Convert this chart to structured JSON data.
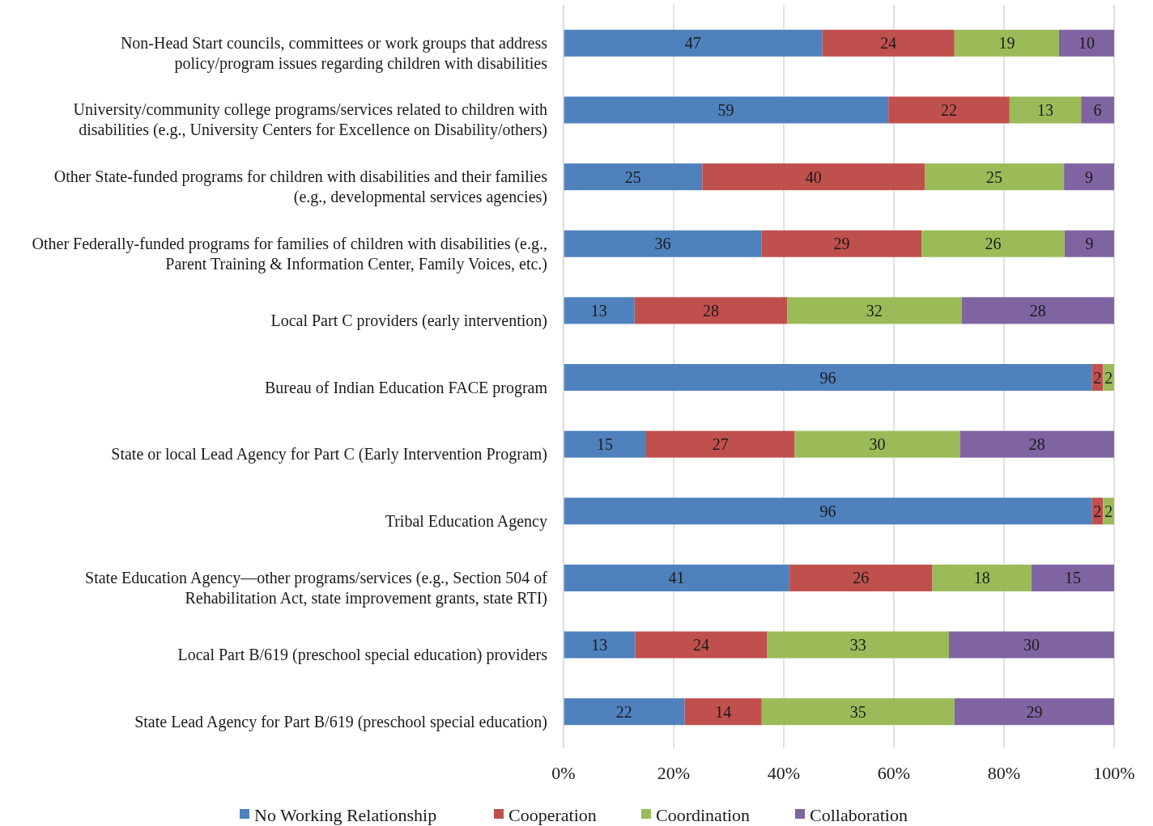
{
  "chart_data": {
    "type": "bar",
    "orientation": "horizontal",
    "stacked": true,
    "categories": [
      "Non-Head Start councils, committees or work groups that address policy/program issues regarding children with disabilities",
      "University/community college programs/services related to children with disabilities (e.g., University Centers for Excellence on Disability/others)",
      "Other State-funded programs for children with disabilities and their families (e.g., developmental services agencies)",
      "Other Federally-funded programs for families of children with disabilities (e.g., Parent Training & Information Center, Family Voices, etc.)",
      "Local Part C providers (early intervention)",
      "Bureau of Indian Education FACE program",
      "State or local Lead Agency for Part C (Early Intervention Program)",
      "Tribal Education Agency",
      "State Education Agency—other programs/services (e.g., Section 504 of Rehabilitation Act, state improvement grants, state RTI)",
      "Local Part B/619 (preschool special education) providers",
      "State Lead Agency for Part B/619 (preschool special education)"
    ],
    "series": [
      {
        "name": "No Working Relationship",
        "color": "#4f81bd",
        "values": [
          47,
          59,
          25.2,
          36,
          12.9,
          96,
          15,
          96,
          41,
          13,
          22
        ],
        "value_labels": [
          "47",
          "59",
          "25",
          "36",
          "13",
          "96",
          "15",
          "96",
          "41",
          "13",
          "22"
        ]
      },
      {
        "name": "Cooperation",
        "color": "#c0504d",
        "values": [
          24,
          22,
          40.4,
          29,
          27.7,
          2,
          27,
          2,
          26,
          24,
          14
        ],
        "value_labels": [
          "24",
          "22",
          "40",
          "29",
          "28",
          "2",
          "27",
          "2",
          "26",
          "24",
          "14"
        ]
      },
      {
        "name": "Coordination",
        "color": "#9bbb59",
        "values": [
          19,
          13,
          25.3,
          26,
          31.7,
          2,
          30,
          2,
          18,
          33,
          35
        ],
        "value_labels": [
          "19",
          "13",
          "25",
          "26",
          "32",
          "2",
          "30",
          "2",
          "18",
          "33",
          "35"
        ]
      },
      {
        "name": "Collaboration",
        "color": "#8064a2",
        "values": [
          10,
          6,
          9.1,
          9,
          27.7,
          null,
          28,
          null,
          15,
          30,
          29
        ],
        "value_labels": [
          "10",
          "6",
          "9",
          "9",
          "28",
          null,
          "28",
          null,
          "15",
          "30",
          "29"
        ]
      }
    ],
    "xlim": [
      0,
      100
    ],
    "xticks": [
      {
        "value": 0,
        "label": "0%"
      },
      {
        "value": 20,
        "label": "20%"
      },
      {
        "value": 40,
        "label": "40%"
      },
      {
        "value": 60,
        "label": "60%"
      },
      {
        "value": 80,
        "label": "80%"
      },
      {
        "value": 100,
        "label": "100%"
      }
    ],
    "grid": "x",
    "legend": "bottom"
  }
}
